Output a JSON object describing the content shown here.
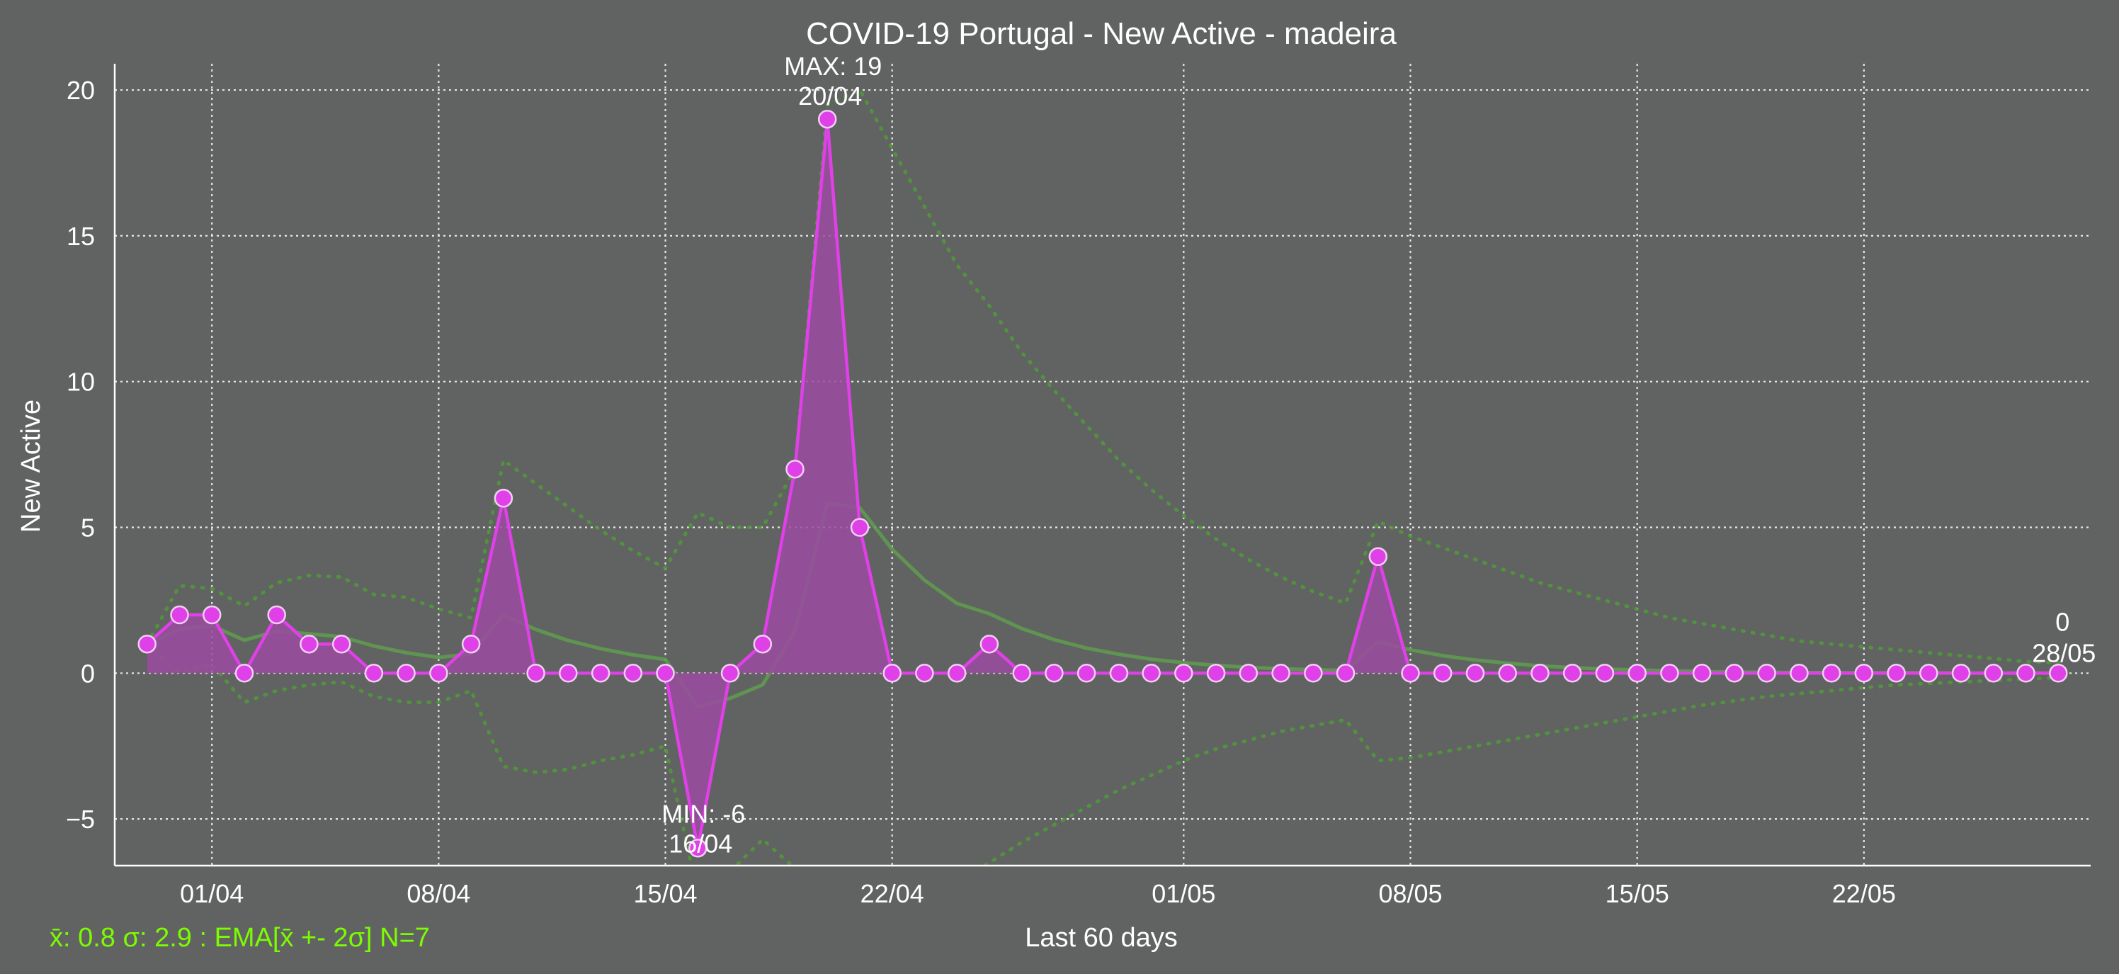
{
  "chart_data": {
    "type": "line",
    "title": "COVID-19 Portugal - New Active - madeira",
    "xlabel": "Last 60 days",
    "ylabel": "New Active",
    "ylim": [
      -6.6,
      20.9
    ],
    "xlim_dates": [
      "2020-03-29",
      "2020-05-29"
    ],
    "start_date": "2020-03-30",
    "grid": true,
    "x_ticks": [
      "01/04",
      "08/04",
      "15/04",
      "22/04",
      "01/05",
      "08/05",
      "15/05",
      "22/05"
    ],
    "y_ticks": [
      -5,
      0,
      5,
      10,
      15,
      20
    ],
    "series": [
      {
        "values": [
          1,
          2,
          2,
          0,
          2,
          1,
          1,
          0,
          0,
          0,
          1,
          6,
          0,
          0,
          0,
          0,
          0,
          -6,
          0,
          1,
          7,
          19,
          5,
          0,
          0,
          0,
          1,
          0,
          0,
          0,
          0,
          0,
          0,
          0,
          0,
          0,
          0,
          0,
          4,
          0,
          0,
          0,
          0,
          0,
          0,
          0,
          0,
          0,
          0,
          0,
          0,
          0,
          0,
          0,
          0,
          0,
          0,
          0,
          0,
          0
        ],
        "color": "#e040e8"
      }
    ],
    "ema": [
      1.0,
      1.5,
      1.63,
      1.13,
      1.44,
      1.35,
      1.25,
      0.93,
      0.7,
      0.54,
      0.66,
      2.0,
      1.5,
      1.12,
      0.84,
      0.63,
      0.47,
      -1.15,
      -0.86,
      -0.4,
      1.45,
      5.84,
      5.67,
      4.25,
      3.19,
      2.39,
      2.04,
      1.53,
      1.15,
      0.86,
      0.65,
      0.48,
      0.36,
      0.27,
      0.2,
      0.15,
      0.12,
      0.09,
      1.07,
      0.8,
      0.6,
      0.45,
      0.34,
      0.25,
      0.19,
      0.14,
      0.11,
      0.08,
      0.06,
      0.04,
      0.03,
      0.02,
      0.02,
      0.01,
      0.01,
      0.01,
      0.0,
      0.0,
      0.0,
      0.0
    ],
    "ema_upper": [
      1.0,
      3.0,
      2.9,
      2.3,
      3.1,
      3.35,
      3.3,
      2.7,
      2.6,
      2.2,
      1.9,
      7.3,
      6.5,
      5.7,
      4.9,
      4.2,
      3.6,
      5.5,
      5.0,
      5.0,
      7.0,
      19.5,
      20.0,
      18.0,
      16.0,
      14.0,
      12.6,
      11.0,
      9.7,
      8.5,
      7.3,
      6.3,
      5.4,
      4.6,
      3.9,
      3.3,
      2.8,
      2.4,
      5.2,
      4.7,
      4.3,
      3.9,
      3.5,
      3.1,
      2.8,
      2.5,
      2.2,
      1.9,
      1.7,
      1.5,
      1.3,
      1.1,
      1.0,
      0.9,
      0.8,
      0.7,
      0.6,
      0.5,
      0.4,
      0.35
    ],
    "ema_lower": [
      1.0,
      0.0,
      0.3,
      -1.0,
      -0.6,
      -0.4,
      -0.3,
      -0.8,
      -1.0,
      -1.0,
      -0.6,
      -3.2,
      -3.4,
      -3.3,
      -3.0,
      -2.8,
      -2.5,
      -7.6,
      -6.8,
      -5.7,
      -6.7,
      -10.0,
      -9.5,
      -8.8,
      -8.0,
      -7.2,
      -6.5,
      -5.8,
      -5.2,
      -4.6,
      -4.0,
      -3.5,
      -3.0,
      -2.6,
      -2.3,
      -2.0,
      -1.8,
      -1.6,
      -3.0,
      -2.9,
      -2.7,
      -2.5,
      -2.3,
      -2.1,
      -1.9,
      -1.7,
      -1.5,
      -1.3,
      -1.1,
      -0.95,
      -0.8,
      -0.7,
      -0.6,
      -0.5,
      -0.4,
      -0.35,
      -0.3,
      -0.25,
      -0.2,
      -0.15
    ],
    "annotations": {
      "max": {
        "label": "MAX: 19",
        "date": "20/04",
        "value": 19
      },
      "min": {
        "label": "MIN: -6",
        "date": "16/04",
        "value": -6
      },
      "last": {
        "label": "0",
        "date": "28/05",
        "value": 0
      }
    },
    "stats_text": "x̄: 0.8 σ: 2.9 : EMA[x̄ +- 2σ] N=7",
    "colors": {
      "background": "#616362",
      "series": "#e040e8",
      "fill": "#9b4aa0",
      "ema": "#5f9a50",
      "band": "#4f9a38",
      "stats": "#7cfc00",
      "grid": "#e6e6e6",
      "text": "#ffffff"
    }
  }
}
